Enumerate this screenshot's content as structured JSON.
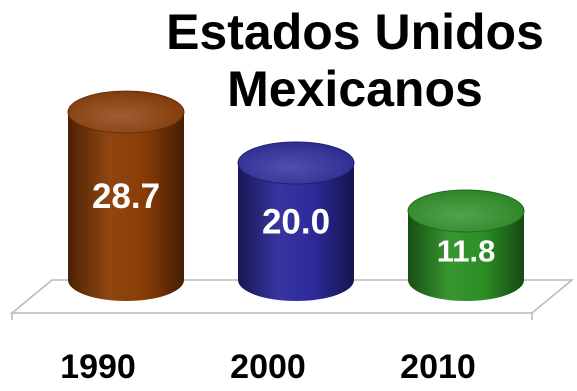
{
  "chart_data": {
    "type": "bar",
    "title_lines": [
      "Estados Unidos",
      "Mexicanos"
    ],
    "categories": [
      "1990",
      "2000",
      "2010"
    ],
    "values": [
      28.7,
      20.0,
      11.8
    ],
    "value_labels": [
      "28.7",
      "20.0",
      "11.8"
    ],
    "colors": [
      "#8a3c06",
      "#2c2a9a",
      "#2c8f25"
    ],
    "xlabel": "",
    "ylabel": "",
    "ylim": [
      0,
      30
    ],
    "grid": false,
    "legend": "none"
  }
}
